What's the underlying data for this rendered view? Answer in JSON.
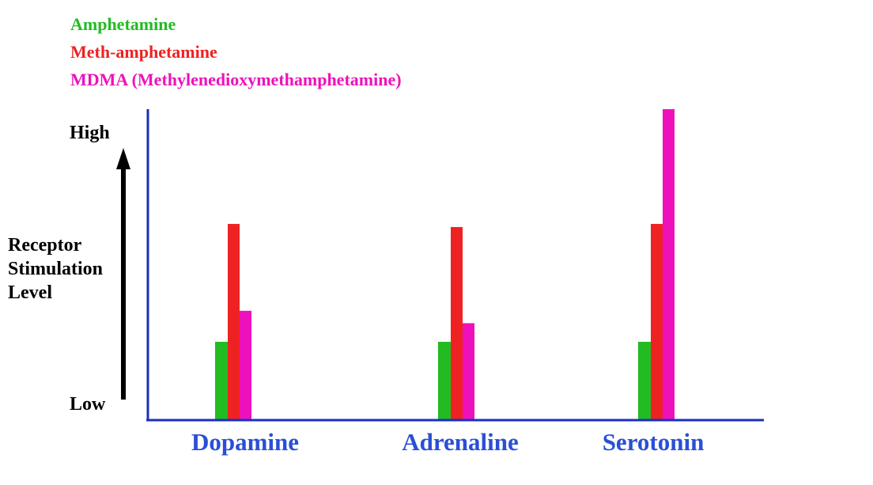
{
  "chart_data": {
    "type": "bar",
    "categories": [
      "Dopamine",
      "Adrenaline",
      "Serotonin"
    ],
    "series": [
      {
        "name": "Amphetamine",
        "color": "#22bb22",
        "values": [
          25,
          25,
          25
        ]
      },
      {
        "name": "Meth-amphetamine",
        "color": "#ee2222",
        "values": [
          63,
          62,
          63
        ]
      },
      {
        "name": "MDMA (Methylenedioxymethamphetamine)",
        "color": "#ee11bb",
        "values": [
          35,
          31,
          100
        ]
      }
    ],
    "ylabel_lines": [
      "Receptor",
      "Stimulation",
      "Level"
    ],
    "ytick_high": "High",
    "ytick_low": "Low",
    "ylim": [
      0,
      100
    ],
    "grid": false,
    "legend_position": "top-left",
    "axis_color": "#1a2fbf",
    "category_label_color": "#2a4fd6"
  }
}
